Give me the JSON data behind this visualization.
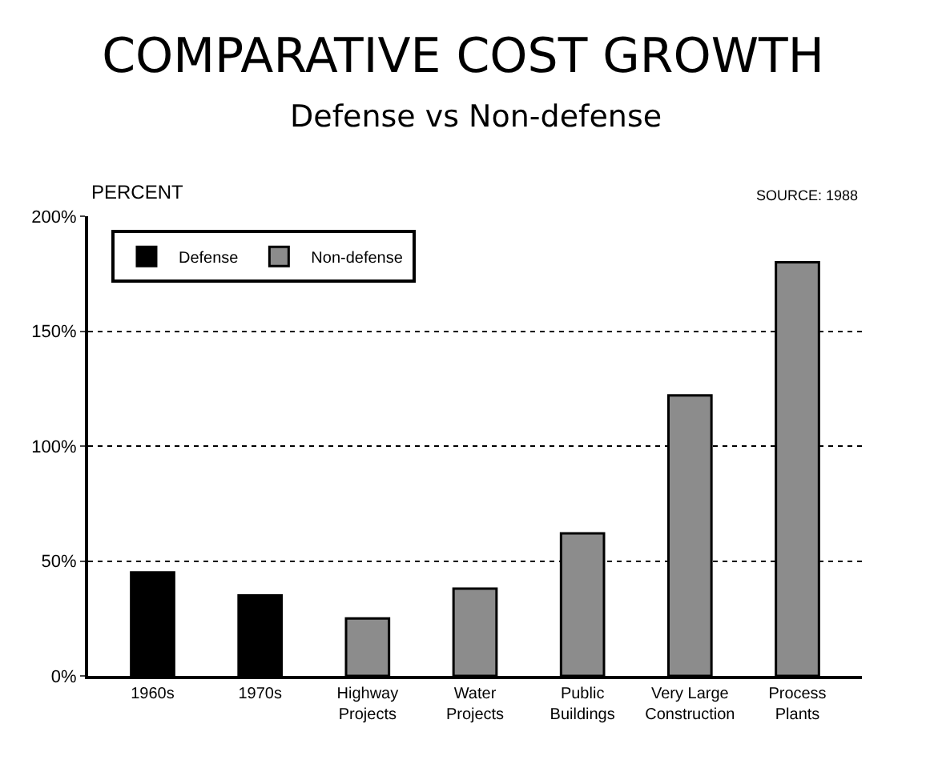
{
  "chart_data": {
    "type": "bar",
    "title": "COMPARATIVE COST GROWTH",
    "subtitle": "Defense vs Non-defense",
    "ylabel": "PERCENT",
    "annotations": [
      "SOURCE: 1988"
    ],
    "categories": [
      "1960s",
      "1970s",
      "Highway\nProjects",
      "Water\nProjects",
      "Public\nBuildings",
      "Very Large\nConstruction",
      "Process\nPlants"
    ],
    "series": [
      {
        "name": "Defense",
        "color": "#000000",
        "values": [
          45,
          35,
          null,
          null,
          null,
          null,
          null
        ]
      },
      {
        "name": "Non-defense",
        "color": "#8c8c8c",
        "values": [
          null,
          null,
          25,
          38,
          62,
          122,
          180
        ]
      }
    ],
    "ylim": [
      0,
      200
    ],
    "yticks": [
      {
        "value": 0,
        "label": "0%"
      },
      {
        "value": 50,
        "label": "50%"
      },
      {
        "value": 100,
        "label": "100%"
      },
      {
        "value": 150,
        "label": "150%"
      },
      {
        "value": 200,
        "label": "200%"
      }
    ],
    "grid": "y",
    "line_style": "dotted",
    "legend": "top left"
  }
}
